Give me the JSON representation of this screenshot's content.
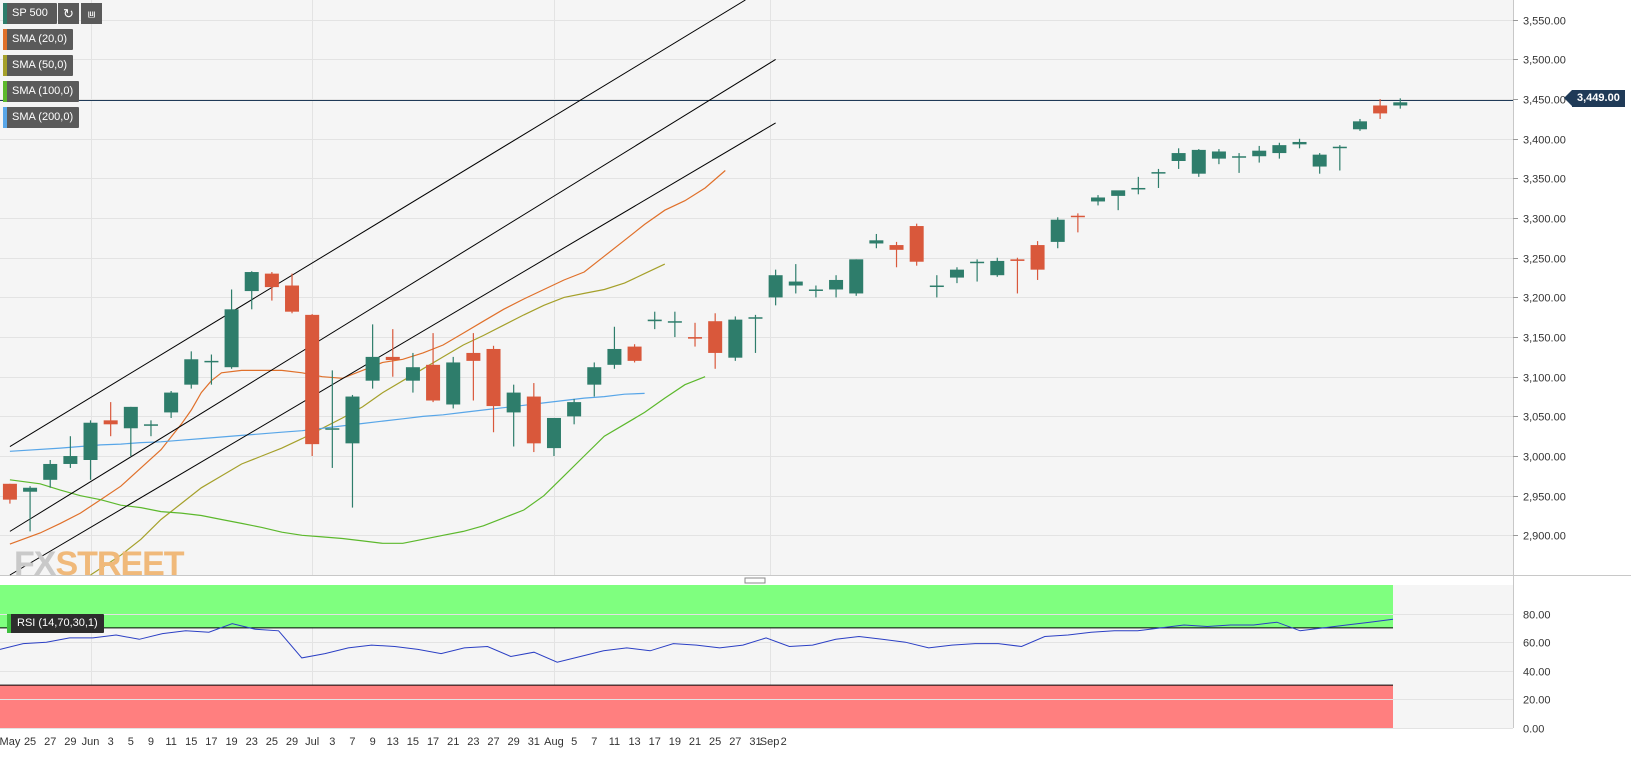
{
  "symbol": {
    "label": "SP 500",
    "buttons": [
      "refresh-icon",
      "chart-settings-icon"
    ]
  },
  "indicators": [
    {
      "label": "SMA (20,0)",
      "color": "#e0702a"
    },
    {
      "label": "SMA (50,0)",
      "color": "#a5a02a"
    },
    {
      "label": "SMA (100,0)",
      "color": "#5cb82c"
    },
    {
      "label": "SMA (200,0)",
      "color": "#58a6e8"
    }
  ],
  "last_price_label": "3,449.00",
  "watermark": {
    "part1": "FX",
    "part2": "STREET"
  },
  "rsi_label": "RSI (14,70,30,1)",
  "colors": {
    "up": "#2e7d6b",
    "down": "#d9583b",
    "channel": "#000000",
    "rsi": "#2b3fc4",
    "overbought": "#7fff7f",
    "oversold": "#ff7f7f",
    "price_line": "#1f3a57"
  },
  "chart_data": [
    {
      "type": "candlestick",
      "y_ticks": [
        "2,900.00",
        "2,950.00",
        "3,000.00",
        "3,050.00",
        "3,100.00",
        "3,150.00",
        "3,200.00",
        "3,250.00",
        "3,300.00",
        "3,350.00",
        "3,400.00",
        "3,450.00",
        "3,500.00",
        "3,550.00"
      ],
      "y_tick_values": [
        2900,
        2950,
        3000,
        3050,
        3100,
        3150,
        3200,
        3250,
        3300,
        3350,
        3400,
        3450,
        3500,
        3550
      ],
      "x_labels": [
        "May",
        "25",
        "27",
        "29",
        "Jun",
        "3",
        "5",
        "9",
        "11",
        "15",
        "17",
        "19",
        "23",
        "25",
        "29",
        "Jul",
        "3",
        "7",
        "9",
        "13",
        "15",
        "17",
        "21",
        "23",
        "27",
        "29",
        "31",
        "Aug",
        "5",
        "7",
        "11",
        "13",
        "17",
        "19",
        "21",
        "25",
        "27",
        "31",
        "Sep",
        "2"
      ],
      "x_label_index": [
        -0.5,
        0.5,
        1.5,
        2.5,
        3.5,
        4.5,
        5.5,
        6.5,
        7.5,
        8.5,
        9.5,
        10.5,
        11.5,
        12.5,
        13.5,
        14.5,
        15.5,
        16.5,
        17.5,
        18.5,
        19.5,
        20.5,
        21.5,
        22.5,
        23.5,
        24.5,
        25.5,
        26.5,
        27.5,
        28.5,
        29.5,
        30.5,
        31.5,
        32.5,
        33.5,
        34.5,
        35.5,
        36.5,
        37.2,
        37.9
      ],
      "ylim": [
        2850,
        3575
      ],
      "candles": [
        {
          "o": 2965,
          "h": 2965,
          "l": 2940,
          "c": 2945
        },
        {
          "o": 2955,
          "h": 2962,
          "l": 2905,
          "c": 2960
        },
        {
          "o": 2970,
          "h": 2995,
          "l": 2960,
          "c": 2990
        },
        {
          "o": 2990,
          "h": 3025,
          "l": 2985,
          "c": 3000
        },
        {
          "o": 2995,
          "h": 3045,
          "l": 2970,
          "c": 3042
        },
        {
          "o": 3045,
          "h": 3068,
          "l": 3025,
          "c": 3040
        },
        {
          "o": 3035,
          "h": 3062,
          "l": 3000,
          "c": 3062
        },
        {
          "o": 3040,
          "h": 3045,
          "l": 3025,
          "c": 3040
        },
        {
          "o": 3055,
          "h": 3082,
          "l": 3048,
          "c": 3080
        },
        {
          "o": 3090,
          "h": 3132,
          "l": 3085,
          "c": 3122
        },
        {
          "o": 3120,
          "h": 3128,
          "l": 3090,
          "c": 3120
        },
        {
          "o": 3112,
          "h": 3210,
          "l": 3110,
          "c": 3185
        },
        {
          "o": 3208,
          "h": 3233,
          "l": 3185,
          "c": 3232
        },
        {
          "o": 3230,
          "h": 3232,
          "l": 3196,
          "c": 3213
        },
        {
          "o": 3215,
          "h": 3230,
          "l": 3180,
          "c": 3182
        },
        {
          "o": 3178,
          "h": 3179,
          "l": 3000,
          "c": 3015
        },
        {
          "o": 3035,
          "h": 3108,
          "l": 2985,
          "c": 3035
        },
        {
          "o": 3016,
          "h": 3077,
          "l": 2935,
          "c": 3075
        },
        {
          "o": 3095,
          "h": 3166,
          "l": 3085,
          "c": 3125
        },
        {
          "o": 3125,
          "h": 3160,
          "l": 3100,
          "c": 3121
        },
        {
          "o": 3095,
          "h": 3130,
          "l": 3080,
          "c": 3112
        },
        {
          "o": 3115,
          "h": 3155,
          "l": 3068,
          "c": 3070
        },
        {
          "o": 3065,
          "h": 3125,
          "l": 3060,
          "c": 3118
        },
        {
          "o": 3130,
          "h": 3155,
          "l": 3070,
          "c": 3120
        },
        {
          "o": 3135,
          "h": 3139,
          "l": 3030,
          "c": 3063
        },
        {
          "o": 3055,
          "h": 3090,
          "l": 3012,
          "c": 3080
        },
        {
          "o": 3075,
          "h": 3092,
          "l": 3005,
          "c": 3016
        },
        {
          "o": 3010,
          "h": 3048,
          "l": 3000,
          "c": 3048
        },
        {
          "o": 3050,
          "h": 3072,
          "l": 3040,
          "c": 3068
        },
        {
          "o": 3090,
          "h": 3118,
          "l": 3075,
          "c": 3112
        },
        {
          "o": 3115,
          "h": 3163,
          "l": 3110,
          "c": 3135
        },
        {
          "o": 3138,
          "h": 3141,
          "l": 3118,
          "c": 3120
        },
        {
          "o": 3170,
          "h": 3182,
          "l": 3160,
          "c": 3172
        },
        {
          "o": 3170,
          "h": 3182,
          "l": 3150,
          "c": 3170
        },
        {
          "o": 3150,
          "h": 3168,
          "l": 3138,
          "c": 3148
        },
        {
          "o": 3170,
          "h": 3180,
          "l": 3110,
          "c": 3130
        },
        {
          "o": 3124,
          "h": 3176,
          "l": 3120,
          "c": 3172
        },
        {
          "o": 3175,
          "h": 3178,
          "l": 3130,
          "c": 3175
        },
        {
          "o": 3200,
          "h": 3235,
          "l": 3190,
          "c": 3228
        },
        {
          "o": 3215,
          "h": 3242,
          "l": 3205,
          "c": 3220
        },
        {
          "o": 3210,
          "h": 3215,
          "l": 3200,
          "c": 3210
        },
        {
          "o": 3210,
          "h": 3228,
          "l": 3200,
          "c": 3222
        },
        {
          "o": 3205,
          "h": 3248,
          "l": 3202,
          "c": 3248
        },
        {
          "o": 3268,
          "h": 3280,
          "l": 3262,
          "c": 3272
        },
        {
          "o": 3266,
          "h": 3270,
          "l": 3238,
          "c": 3260
        },
        {
          "o": 3290,
          "h": 3293,
          "l": 3240,
          "c": 3245
        },
        {
          "o": 3215,
          "h": 3228,
          "l": 3200,
          "c": 3215
        },
        {
          "o": 3225,
          "h": 3238,
          "l": 3218,
          "c": 3235
        },
        {
          "o": 3245,
          "h": 3248,
          "l": 3220,
          "c": 3245
        },
        {
          "o": 3228,
          "h": 3250,
          "l": 3226,
          "c": 3246
        },
        {
          "o": 3248,
          "h": 3250,
          "l": 3205,
          "c": 3246
        },
        {
          "o": 3266,
          "h": 3271,
          "l": 3222,
          "c": 3235
        },
        {
          "o": 3270,
          "h": 3301,
          "l": 3262,
          "c": 3298
        },
        {
          "o": 3303,
          "h": 3306,
          "l": 3282,
          "c": 3302
        },
        {
          "o": 3321,
          "h": 3329,
          "l": 3316,
          "c": 3326
        },
        {
          "o": 3328,
          "h": 3334,
          "l": 3310,
          "c": 3335
        },
        {
          "o": 3338,
          "h": 3352,
          "l": 3330,
          "c": 3338
        },
        {
          "o": 3358,
          "h": 3362,
          "l": 3338,
          "c": 3358
        },
        {
          "o": 3372,
          "h": 3388,
          "l": 3362,
          "c": 3382
        },
        {
          "o": 3356,
          "h": 3387,
          "l": 3352,
          "c": 3386
        },
        {
          "o": 3375,
          "h": 3387,
          "l": 3368,
          "c": 3384
        },
        {
          "o": 3378,
          "h": 3382,
          "l": 3357,
          "c": 3378
        },
        {
          "o": 3378,
          "h": 3391,
          "l": 3370,
          "c": 3385
        },
        {
          "o": 3382,
          "h": 3395,
          "l": 3375,
          "c": 3392
        },
        {
          "o": 3393,
          "h": 3400,
          "l": 3388,
          "c": 3396
        },
        {
          "o": 3365,
          "h": 3382,
          "l": 3356,
          "c": 3380
        },
        {
          "o": 3390,
          "h": 3392,
          "l": 3360,
          "c": 3390
        },
        {
          "o": 3412,
          "h": 3425,
          "l": 3410,
          "c": 3422
        },
        {
          "o": 3442,
          "h": 3450,
          "l": 3425,
          "c": 3432
        },
        {
          "o": 3442,
          "h": 3451,
          "l": 3438,
          "c": 3446
        }
      ],
      "sma20": [
        [
          -0.5,
          2889
        ],
        [
          1,
          2903
        ],
        [
          2,
          2915
        ],
        [
          3,
          2928
        ],
        [
          4,
          2945
        ],
        [
          5,
          2962
        ],
        [
          6,
          2985
        ],
        [
          7,
          3008
        ],
        [
          8,
          3040
        ],
        [
          8.5,
          3058
        ],
        [
          9,
          3080
        ],
        [
          9.5,
          3095
        ],
        [
          10,
          3105
        ],
        [
          11,
          3108
        ],
        [
          12,
          3108
        ],
        [
          13,
          3108
        ],
        [
          14,
          3105
        ],
        [
          15,
          3100
        ],
        [
          16,
          3098
        ],
        [
          17,
          3108
        ],
        [
          18,
          3118
        ],
        [
          19,
          3122
        ],
        [
          20,
          3130
        ],
        [
          21,
          3140
        ],
        [
          22,
          3155
        ],
        [
          23,
          3170
        ],
        [
          24,
          3185
        ],
        [
          25,
          3198
        ],
        [
          26,
          3210
        ],
        [
          27,
          3222
        ],
        [
          28,
          3232
        ],
        [
          29,
          3252
        ],
        [
          30,
          3272
        ],
        [
          31,
          3292
        ],
        [
          32,
          3310
        ],
        [
          33,
          3322
        ],
        [
          34,
          3338
        ],
        [
          35,
          3360
        ]
      ],
      "sma50": [
        [
          3.5,
          2850
        ],
        [
          5,
          2875
        ],
        [
          6,
          2895
        ],
        [
          7,
          2920
        ],
        [
          8,
          2940
        ],
        [
          9,
          2960
        ],
        [
          10,
          2975
        ],
        [
          11,
          2990
        ],
        [
          12,
          3000
        ],
        [
          13,
          3010
        ],
        [
          14,
          3022
        ],
        [
          15,
          3035
        ],
        [
          16,
          3048
        ],
        [
          17,
          3062
        ],
        [
          18,
          3080
        ],
        [
          19,
          3095
        ],
        [
          20,
          3110
        ],
        [
          21,
          3125
        ],
        [
          22,
          3140
        ],
        [
          23,
          3152
        ],
        [
          24,
          3165
        ],
        [
          25,
          3178
        ],
        [
          26,
          3190
        ],
        [
          27,
          3200
        ],
        [
          28,
          3205
        ],
        [
          29,
          3210
        ],
        [
          30,
          3218
        ],
        [
          31,
          3230
        ],
        [
          32,
          3242
        ]
      ],
      "sma100": [
        [
          -0.5,
          2970
        ],
        [
          1,
          2965
        ],
        [
          2,
          2957
        ],
        [
          3,
          2950
        ],
        [
          4,
          2945
        ],
        [
          5,
          2938
        ],
        [
          6,
          2935
        ],
        [
          7,
          2930
        ],
        [
          8,
          2928
        ],
        [
          9,
          2925
        ],
        [
          10,
          2920
        ],
        [
          11,
          2915
        ],
        [
          12,
          2910
        ],
        [
          13,
          2904
        ],
        [
          14,
          2900
        ],
        [
          15,
          2898
        ],
        [
          16,
          2896
        ],
        [
          17,
          2893
        ],
        [
          18,
          2890
        ],
        [
          19,
          2890
        ],
        [
          20,
          2895
        ],
        [
          21,
          2900
        ],
        [
          22,
          2905
        ],
        [
          23,
          2912
        ],
        [
          24,
          2922
        ],
        [
          25,
          2932
        ],
        [
          26,
          2950
        ],
        [
          27,
          2975
        ],
        [
          28,
          3000
        ],
        [
          29,
          3025
        ],
        [
          30,
          3040
        ],
        [
          31,
          3055
        ],
        [
          32,
          3073
        ],
        [
          33,
          3090
        ],
        [
          34,
          3100
        ]
      ],
      "sma200": [
        [
          -0.5,
          3006
        ],
        [
          2,
          3010
        ],
        [
          3,
          3012
        ],
        [
          4,
          3014
        ],
        [
          5,
          3015
        ],
        [
          6,
          3017
        ],
        [
          7,
          3018
        ],
        [
          8,
          3020
        ],
        [
          9,
          3022
        ],
        [
          10,
          3024
        ],
        [
          11,
          3026
        ],
        [
          12,
          3028
        ],
        [
          13,
          3030
        ],
        [
          14,
          3032
        ],
        [
          15,
          3035
        ],
        [
          16,
          3038
        ],
        [
          17,
          3041
        ],
        [
          18,
          3044
        ],
        [
          19,
          3047
        ],
        [
          20,
          3050
        ],
        [
          21,
          3052
        ],
        [
          22,
          3055
        ],
        [
          23,
          3058
        ],
        [
          24,
          3061
        ],
        [
          25,
          3064
        ],
        [
          26,
          3067
        ],
        [
          27,
          3070
        ],
        [
          28,
          3073
        ],
        [
          29,
          3075
        ],
        [
          30,
          3078
        ],
        [
          31,
          3079
        ]
      ],
      "channel_lines": [
        [
          [
            -0.5,
            3012
          ],
          [
            36,
            3575
          ]
        ],
        [
          [
            -0.5,
            2905
          ],
          [
            37.5,
            3500
          ]
        ],
        [
          [
            -0.5,
            2850
          ],
          [
            37.5,
            3420
          ]
        ]
      ],
      "last_price": 3449
    },
    {
      "type": "line",
      "title": "RSI (14,70,30,1)",
      "y_ticks": [
        "80.00",
        "60.00",
        "40.00",
        "20.00",
        "0.00"
      ],
      "y_tick_values": [
        80,
        60,
        40,
        20,
        0
      ],
      "ylim": [
        0,
        100
      ],
      "overbought": 70,
      "oversold": 30,
      "values": [
        55,
        59,
        60,
        63,
        63,
        65,
        62,
        66,
        68,
        67,
        73,
        69,
        68,
        49,
        52,
        56,
        58,
        57,
        55,
        52,
        56,
        57,
        50,
        53,
        46,
        50,
        54,
        56,
        54,
        59,
        58,
        56,
        58,
        63,
        57,
        58,
        62,
        64,
        62,
        60,
        56,
        58,
        59,
        59,
        57,
        64,
        65,
        67,
        68,
        68,
        70,
        72,
        71,
        72,
        72,
        74,
        68,
        70,
        72,
        74,
        76
      ]
    }
  ]
}
